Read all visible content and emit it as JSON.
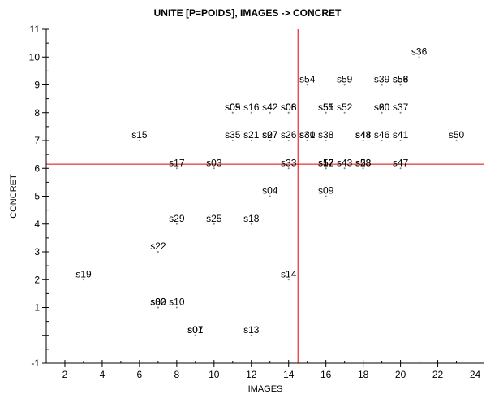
{
  "chart_data": {
    "type": "scatter",
    "title": "UNITE [P=POIDS],  IMAGES -> CONCRET",
    "xlabel": "IMAGES",
    "ylabel": "CONCRET",
    "xlim": [
      1,
      24.5
    ],
    "ylim": [
      -1,
      11
    ],
    "xticks": [
      2,
      4,
      6,
      8,
      10,
      12,
      14,
      16,
      18,
      20,
      22,
      24
    ],
    "yticks": [
      -1,
      0,
      1,
      2,
      3,
      4,
      5,
      6,
      7,
      8,
      9,
      10,
      11
    ],
    "ytick_labels": [
      "-1",
      "",
      "1",
      "2",
      "3",
      "4",
      "5",
      "6",
      "7",
      "8",
      "9",
      "10",
      "11"
    ],
    "reference_lines": {
      "x": 14.5,
      "y": 6.15,
      "color": "#e00000"
    },
    "marker_color": "#808080",
    "points": [
      {
        "label": "s36",
        "x": 21,
        "y": 10
      },
      {
        "label": "s54",
        "x": 15,
        "y": 9
      },
      {
        "label": "s59",
        "x": 17,
        "y": 9
      },
      {
        "label": "s39",
        "x": 19,
        "y": 9
      },
      {
        "label": "s56",
        "x": 20,
        "y": 9
      },
      {
        "label": "s58",
        "x": 20,
        "y": 9
      },
      {
        "label": "s05",
        "x": 11,
        "y": 8
      },
      {
        "label": "s09",
        "x": 11,
        "y": 8
      },
      {
        "label": "s16",
        "x": 12,
        "y": 8
      },
      {
        "label": "s42",
        "x": 13,
        "y": 8
      },
      {
        "label": "s06",
        "x": 14,
        "y": 8
      },
      {
        "label": "s08",
        "x": 14,
        "y": 8
      },
      {
        "label": "s55",
        "x": 16,
        "y": 8
      },
      {
        "label": "s51",
        "x": 16,
        "y": 8
      },
      {
        "label": "s52",
        "x": 17,
        "y": 8
      },
      {
        "label": "s20",
        "x": 19,
        "y": 8
      },
      {
        "label": "s60",
        "x": 19,
        "y": 8
      },
      {
        "label": "s37",
        "x": 20,
        "y": 8
      },
      {
        "label": "s15",
        "x": 6,
        "y": 7
      },
      {
        "label": "s35",
        "x": 11,
        "y": 7
      },
      {
        "label": "s21",
        "x": 12,
        "y": 7
      },
      {
        "label": "s27",
        "x": 13,
        "y": 7
      },
      {
        "label": "s07",
        "x": 13,
        "y": 7
      },
      {
        "label": "s26",
        "x": 14,
        "y": 7
      },
      {
        "label": "s40",
        "x": 15,
        "y": 7
      },
      {
        "label": "s31",
        "x": 15,
        "y": 7
      },
      {
        "label": "s38",
        "x": 16,
        "y": 7
      },
      {
        "label": "s48",
        "x": 18,
        "y": 7
      },
      {
        "label": "s44",
        "x": 18,
        "y": 7
      },
      {
        "label": "s46",
        "x": 19,
        "y": 7
      },
      {
        "label": "s41",
        "x": 20,
        "y": 7
      },
      {
        "label": "s50",
        "x": 23,
        "y": 7
      },
      {
        "label": "s17",
        "x": 8,
        "y": 6
      },
      {
        "label": "s03",
        "x": 10,
        "y": 6
      },
      {
        "label": "s33",
        "x": 14,
        "y": 6
      },
      {
        "label": "s57",
        "x": 16,
        "y": 6
      },
      {
        "label": "s12",
        "x": 16,
        "y": 6
      },
      {
        "label": "s43",
        "x": 17,
        "y": 6
      },
      {
        "label": "s53",
        "x": 18,
        "y": 6
      },
      {
        "label": "s28",
        "x": 18,
        "y": 6
      },
      {
        "label": "s47",
        "x": 20,
        "y": 6
      },
      {
        "label": "s04",
        "x": 13,
        "y": 5
      },
      {
        "label": "s09",
        "x": 16,
        "y": 5
      },
      {
        "label": "s29",
        "x": 8,
        "y": 4
      },
      {
        "label": "s25",
        "x": 10,
        "y": 4
      },
      {
        "label": "s18",
        "x": 12,
        "y": 4
      },
      {
        "label": "s22",
        "x": 7,
        "y": 3
      },
      {
        "label": "s19",
        "x": 3,
        "y": 2
      },
      {
        "label": "s14",
        "x": 14,
        "y": 2
      },
      {
        "label": "s30",
        "x": 7,
        "y": 1
      },
      {
        "label": "s02",
        "x": 7,
        "y": 1
      },
      {
        "label": "s10",
        "x": 8,
        "y": 1
      },
      {
        "label": "s01",
        "x": 9,
        "y": 0
      },
      {
        "label": "s07",
        "x": 9,
        "y": 0
      },
      {
        "label": "s13",
        "x": 12,
        "y": 0
      }
    ]
  }
}
